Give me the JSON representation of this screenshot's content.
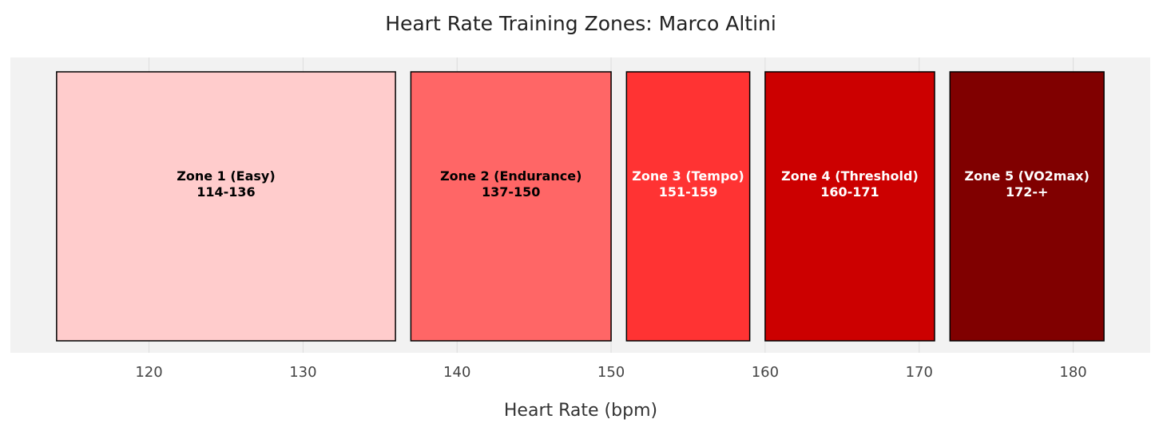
{
  "chart_data": {
    "type": "bar",
    "orientation": "horizontal-ranges",
    "title": "Heart Rate Training Zones: Marco Altini",
    "xlabel": "Heart Rate (bpm)",
    "ylabel": "",
    "xlim": [
      111,
      185
    ],
    "xticks": [
      120,
      130,
      140,
      150,
      160,
      170,
      180
    ],
    "grid": "vertical",
    "background": "#f2f2f2",
    "zones": [
      {
        "name": "Zone 1 (Easy)",
        "range_label": "114-136",
        "start": 114,
        "end": 136,
        "color": "#ffcccc",
        "text_color": "#000000"
      },
      {
        "name": "Zone 2 (Endurance)",
        "range_label": "137-150",
        "start": 137,
        "end": 150,
        "color": "#ff6666",
        "text_color": "#000000"
      },
      {
        "name": "Zone 3 (Tempo)",
        "range_label": "151-159",
        "start": 151,
        "end": 159,
        "color": "#ff3333",
        "text_color": "#ffffff"
      },
      {
        "name": "Zone 4 (Threshold)",
        "range_label": "160-171",
        "start": 160,
        "end": 171,
        "color": "#cc0000",
        "text_color": "#ffffff"
      },
      {
        "name": "Zone 5 (VO2max)",
        "range_label": "172-+",
        "start": 172,
        "end": 182,
        "color": "#800000",
        "text_color": "#ffffff"
      }
    ]
  }
}
